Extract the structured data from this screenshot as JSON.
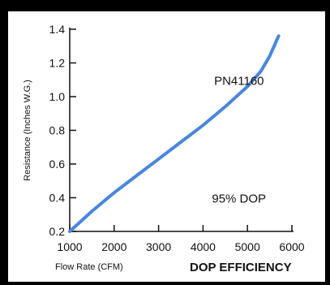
{
  "chart_data": {
    "type": "line",
    "title": "",
    "subtitle": "DOP EFFICIENCY",
    "xlabel": "Flow Rate (CFM)",
    "ylabel": "Resistance (Inches W.G.)",
    "xlim": [
      1000,
      6000
    ],
    "ylim": [
      0.2,
      1.4
    ],
    "x_ticks": [
      1000,
      2000,
      3000,
      4000,
      5000,
      6000
    ],
    "y_ticks": [
      0.2,
      0.4,
      0.6,
      0.8,
      1.0,
      1.2,
      1.4
    ],
    "x_tick_labels": [
      "1000",
      "2000",
      "3000",
      "4000",
      "5000",
      "6000"
    ],
    "y_tick_labels": [
      "0.2",
      "0.4",
      "0.6",
      "0.8",
      "1.0",
      "1.2",
      "1.4"
    ],
    "grid": false,
    "line_color": "#4a86d9",
    "annotations": [
      {
        "text": "PN41160",
        "x": 4250,
        "y": 1.07
      },
      {
        "text": "95% DOP",
        "x": 4200,
        "y": 0.37
      }
    ],
    "series": [
      {
        "x": [
          1000,
          1500,
          2000,
          2500,
          3000,
          3500,
          4000,
          4500,
          5000,
          5300,
          5500,
          5700
        ],
        "y": [
          0.2,
          0.32,
          0.43,
          0.53,
          0.63,
          0.73,
          0.83,
          0.94,
          1.06,
          1.15,
          1.24,
          1.36
        ]
      }
    ]
  }
}
